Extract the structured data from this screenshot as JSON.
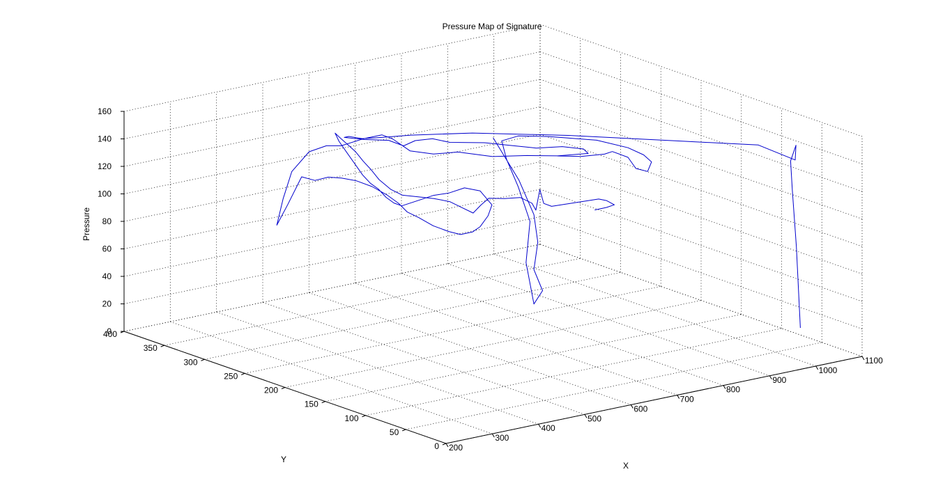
{
  "chart_data": {
    "type": "line3d",
    "title": "Pressure Map of Signature",
    "xlabel": "X",
    "ylabel": "Y",
    "zlabel": "Pressure",
    "xlim": [
      200,
      1100
    ],
    "ylim": [
      0,
      400
    ],
    "zlim": [
      0,
      160
    ],
    "x_ticks": [
      "200",
      "300",
      "400",
      "500",
      "600",
      "700",
      "800",
      "900",
      "1000",
      "1100"
    ],
    "y_ticks": [
      "0",
      "50",
      "100",
      "150",
      "200",
      "250",
      "300",
      "350",
      "400"
    ],
    "z_ticks": [
      "0",
      "20",
      "40",
      "60",
      "80",
      "100",
      "120",
      "140",
      "160"
    ],
    "grid": "on",
    "line_color": "#0000cc",
    "series": [
      {
        "points": [
          [
            1010,
            25,
            22
          ],
          [
            1010,
            30,
            80
          ],
          [
            1010,
            35,
            120
          ],
          [
            1015,
            40,
            140
          ],
          [
            1030,
            42,
            150
          ],
          [
            1025,
            40,
            140
          ],
          [
            980,
            60,
            150
          ],
          [
            880,
            110,
            150
          ],
          [
            760,
            170,
            150
          ],
          [
            640,
            220,
            150
          ],
          [
            560,
            250,
            148
          ],
          [
            520,
            265,
            146
          ],
          [
            480,
            265,
            148
          ],
          [
            460,
            270,
            150
          ],
          [
            450,
            270,
            150
          ],
          [
            480,
            262,
            148
          ],
          [
            520,
            255,
            146
          ],
          [
            540,
            248,
            142
          ],
          [
            560,
            245,
            145
          ],
          [
            580,
            235,
            147
          ],
          [
            600,
            225,
            145
          ],
          [
            640,
            205,
            146
          ],
          [
            670,
            190,
            145
          ],
          [
            700,
            175,
            144
          ],
          [
            730,
            160,
            146
          ],
          [
            755,
            148,
            145
          ],
          [
            760,
            145,
            142
          ],
          [
            720,
            160,
            140
          ],
          [
            680,
            175,
            140
          ],
          [
            640,
            195,
            138
          ],
          [
            600,
            215,
            140
          ],
          [
            570,
            228,
            138
          ],
          [
            540,
            240,
            140
          ],
          [
            520,
            250,
            148
          ],
          [
            500,
            252,
            152
          ],
          [
            470,
            258,
            150
          ],
          [
            440,
            268,
            145
          ],
          [
            420,
            275,
            145
          ],
          [
            400,
            285,
            140
          ],
          [
            380,
            295,
            125
          ],
          [
            370,
            300,
            105
          ],
          [
            365,
            305,
            85
          ],
          [
            380,
            300,
            100
          ],
          [
            410,
            300,
            118
          ],
          [
            430,
            295,
            115
          ],
          [
            450,
            290,
            117
          ],
          [
            470,
            285,
            116
          ],
          [
            490,
            278,
            114
          ],
          [
            510,
            270,
            110
          ],
          [
            530,
            263,
            104
          ],
          [
            545,
            257,
            98
          ],
          [
            555,
            252,
            92
          ],
          [
            570,
            246,
            88
          ],
          [
            590,
            240,
            82
          ],
          [
            610,
            232,
            78
          ],
          [
            625,
            226,
            76
          ],
          [
            640,
            220,
            78
          ],
          [
            650,
            216,
            82
          ],
          [
            660,
            212,
            90
          ],
          [
            665,
            210,
            98
          ],
          [
            650,
            216,
            108
          ],
          [
            630,
            224,
            110
          ],
          [
            610,
            232,
            106
          ],
          [
            590,
            240,
            104
          ],
          [
            570,
            248,
            100
          ],
          [
            550,
            256,
            96
          ],
          [
            540,
            260,
            98
          ],
          [
            530,
            264,
            102
          ],
          [
            520,
            268,
            108
          ],
          [
            510,
            272,
            112
          ],
          [
            500,
            276,
            118
          ],
          [
            490,
            280,
            126
          ],
          [
            480,
            284,
            134
          ],
          [
            470,
            288,
            142
          ],
          [
            465,
            290,
            148
          ],
          [
            470,
            287,
            145
          ],
          [
            480,
            283,
            140
          ],
          [
            490,
            279,
            135
          ],
          [
            500,
            275,
            128
          ],
          [
            510,
            271,
            122
          ],
          [
            520,
            267,
            115
          ],
          [
            535,
            261,
            108
          ],
          [
            550,
            255,
            104
          ],
          [
            570,
            247,
            103
          ],
          [
            590,
            239,
            102
          ],
          [
            610,
            231,
            100
          ],
          [
            625,
            225,
            96
          ],
          [
            640,
            219,
            92
          ],
          [
            650,
            215,
            98
          ],
          [
            660,
            211,
            103
          ],
          [
            680,
            203,
            103
          ],
          [
            700,
            195,
            104
          ],
          [
            715,
            189,
            100
          ],
          [
            720,
            187,
            95
          ],
          [
            725,
            185,
            110
          ],
          [
            730,
            183,
            100
          ],
          [
            740,
            179,
            98
          ],
          [
            760,
            171,
            100
          ],
          [
            780,
            163,
            102
          ],
          [
            800,
            155,
            104
          ],
          [
            810,
            151,
            103
          ],
          [
            820,
            147,
            100
          ],
          [
            810,
            151,
            98
          ],
          [
            795,
            157,
            96
          ]
        ]
      },
      {
        "points": [
          [
            650,
            200,
            150
          ],
          [
            660,
            195,
            140
          ],
          [
            680,
            185,
            120
          ],
          [
            700,
            178,
            95
          ],
          [
            705,
            176,
            75
          ],
          [
            700,
            178,
            55
          ],
          [
            710,
            173,
            40
          ],
          [
            700,
            178,
            30
          ],
          [
            690,
            182,
            60
          ],
          [
            695,
            180,
            90
          ],
          [
            680,
            186,
            115
          ],
          [
            665,
            192,
            135
          ],
          [
            660,
            195,
            148
          ],
          [
            680,
            186,
            152
          ],
          [
            720,
            170,
            152
          ],
          [
            780,
            146,
            150
          ],
          [
            820,
            130,
            145
          ],
          [
            840,
            122,
            140
          ],
          [
            850,
            118,
            135
          ],
          [
            845,
            120,
            128
          ],
          [
            830,
            126,
            130
          ],
          [
            820,
            130,
            138
          ],
          [
            810,
            134,
            140
          ],
          [
            800,
            138,
            142
          ],
          [
            790,
            142,
            140
          ],
          [
            760,
            154,
            138
          ],
          [
            730,
            166,
            138
          ]
        ]
      }
    ]
  }
}
